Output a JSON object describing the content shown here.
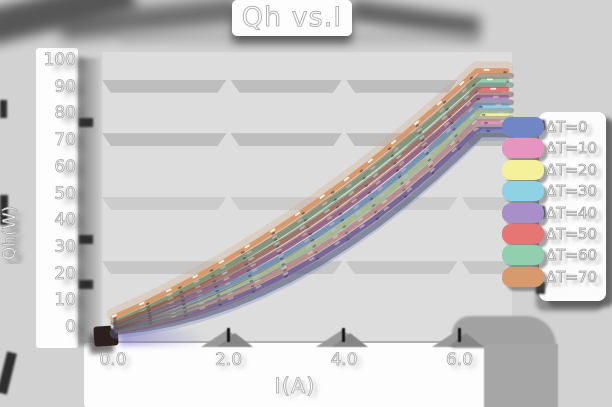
{
  "chart_data": {
    "type": "line",
    "title": "Qh vs.I",
    "xlabel": "I(A)",
    "ylabel": "Qh(W)",
    "xlim": [
      0,
      6.9
    ],
    "ylim": [
      0,
      100
    ],
    "x_ticks": [
      {
        "label": "0.0",
        "value": 0
      },
      {
        "label": "2.0",
        "value": 2
      },
      {
        "label": "4.0",
        "value": 4
      },
      {
        "label": "6.0",
        "value": 6
      }
    ],
    "y_ticks": [
      0,
      10,
      20,
      30,
      40,
      50,
      60,
      70,
      80,
      90,
      100
    ],
    "grid": "horizontal-bands",
    "grid_band_values": [
      90,
      70,
      46,
      22
    ],
    "legend_position": "right",
    "cap_end_A": 6.82,
    "x": [
      0,
      0.5,
      1,
      1.5,
      2,
      2.5,
      3,
      3.5,
      4,
      4.5,
      5,
      5.5,
      6,
      6.3
    ],
    "series": [
      {
        "name": "ΔT=0",
        "color": "#7187c5",
        "shadow": "#3c4660",
        "values": [
          0,
          1.3,
          3.4,
          6.3,
          10,
          14.5,
          19.7,
          25.7,
          32.6,
          40.1,
          48.5,
          57.7,
          67.7,
          74
        ]
      },
      {
        "name": "ΔT=10",
        "color": "#e694c0",
        "shadow": "#7d4563",
        "values": [
          0.4,
          2.2,
          4.7,
          8.0,
          12,
          16.8,
          22.2,
          28.5,
          35.4,
          43.1,
          51.6,
          60.8,
          70.7,
          77
        ]
      },
      {
        "name": "ΔT=20",
        "color": "#f5f19b",
        "shadow": "#8a8756",
        "values": [
          0.8,
          3.1,
          6.0,
          9.7,
          14,
          19.0,
          24.8,
          31.2,
          38.3,
          46.1,
          54.6,
          63.8,
          73.7,
          80
        ]
      },
      {
        "name": "ΔT=30",
        "color": "#8ed2e4",
        "shadow": "#4a7582",
        "values": [
          1.2,
          3.9,
          7.3,
          11.3,
          16,
          21.3,
          27.3,
          33.9,
          41.2,
          49.1,
          57.7,
          66.9,
          76.8,
          83
        ]
      },
      {
        "name": "ΔT=40",
        "color": "#a88fc7",
        "shadow": "#5a4a70",
        "values": [
          1.6,
          4.8,
          8.6,
          13.0,
          18,
          23.6,
          29.8,
          36.7,
          44.1,
          52.1,
          60.7,
          70.0,
          79.8,
          86
        ]
      },
      {
        "name": "ΔT=50",
        "color": "#e67673",
        "shadow": "#7e3c3a",
        "values": [
          2.0,
          5.8,
          10.2,
          15.1,
          20.5,
          26.5,
          32.9,
          39.9,
          47.5,
          55.6,
          64.2,
          73.3,
          82.9,
          89
        ]
      },
      {
        "name": "ΔT=60",
        "color": "#92cfae",
        "shadow": "#4b7560",
        "values": [
          2.8,
          7.1,
          11.9,
          17.2,
          23,
          29.3,
          36.0,
          43.2,
          50.9,
          59.1,
          67.7,
          76.9,
          86.5,
          92.5
        ]
      },
      {
        "name": "ΔT=70",
        "color": "#d79a6f",
        "shadow": "#74503a",
        "values": [
          3.6,
          8.4,
          13.7,
          19.4,
          25.5,
          32.1,
          39.0,
          46.5,
          54.3,
          62.6,
          71.3,
          80.5,
          90.0,
          96
        ]
      }
    ]
  }
}
